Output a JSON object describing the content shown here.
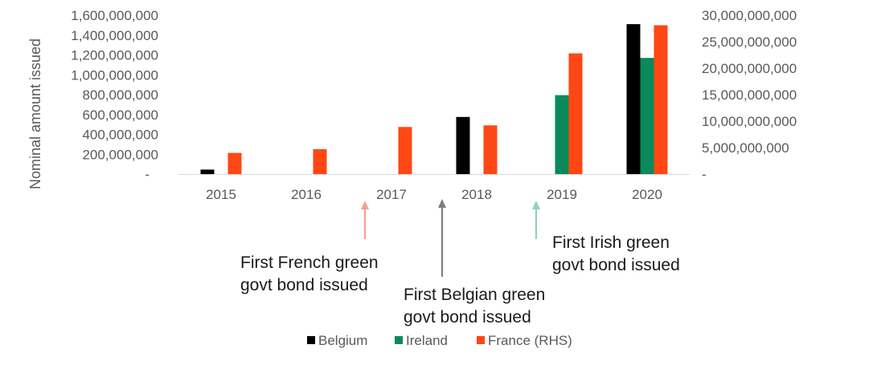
{
  "chart_data": {
    "type": "bar",
    "categories": [
      "2015",
      "2016",
      "2017",
      "2018",
      "2019",
      "2020"
    ],
    "ylabel": "Nominal amount issued",
    "ylim_left": [
      0,
      1600000000
    ],
    "ylim_right": [
      0,
      30000000000
    ],
    "left_ticks": [
      {
        "value": 0,
        "label": "-"
      },
      {
        "value": 200000000,
        "label": "200,000,000"
      },
      {
        "value": 400000000,
        "label": "400,000,000"
      },
      {
        "value": 600000000,
        "label": "600,000,000"
      },
      {
        "value": 800000000,
        "label": "800,000,000"
      },
      {
        "value": 1000000000,
        "label": "1,000,000,000"
      },
      {
        "value": 1200000000,
        "label": "1,200,000,000"
      },
      {
        "value": 1400000000,
        "label": "1,400,000,000"
      },
      {
        "value": 1600000000,
        "label": "1,600,000,000"
      }
    ],
    "right_ticks": [
      {
        "value": 0,
        "label": "-"
      },
      {
        "value": 5000000000,
        "label": "5,000,000,000"
      },
      {
        "value": 10000000000,
        "label": "10,000,000,000"
      },
      {
        "value": 15000000000,
        "label": "15,000,000,000"
      },
      {
        "value": 20000000000,
        "label": "20,000,000,000"
      },
      {
        "value": 25000000000,
        "label": "25,000,000,000"
      },
      {
        "value": 30000000000,
        "label": "30,000,000,000"
      }
    ],
    "series": [
      {
        "name": "Belgium",
        "axis": "left",
        "color": "#000000",
        "values": [
          45000000,
          0,
          0,
          575000000,
          0,
          1510000000
        ]
      },
      {
        "name": "Ireland",
        "axis": "left",
        "color": "#0a8a5a",
        "values": [
          0,
          0,
          0,
          0,
          795000000,
          1170000000
        ]
      },
      {
        "name": "France (RHS)",
        "axis": "right",
        "color": "#ff4713",
        "values": [
          4000000000,
          4700000000,
          8900000000,
          9200000000,
          22800000000,
          28100000000
        ]
      }
    ],
    "annotations": [
      {
        "category": "2017",
        "lines": [
          "First French green",
          "govt bond issued"
        ],
        "arrow_color": "#f4a090"
      },
      {
        "category": "2018",
        "lines": [
          "First Belgian green",
          "govt bond issued"
        ],
        "arrow_color": "#7f7f7f"
      },
      {
        "category": "2019",
        "lines": [
          "First Irish green",
          "govt bond issued"
        ],
        "arrow_color": "#8fd4b4"
      }
    ],
    "legend": "bottom-center",
    "grid": false
  }
}
